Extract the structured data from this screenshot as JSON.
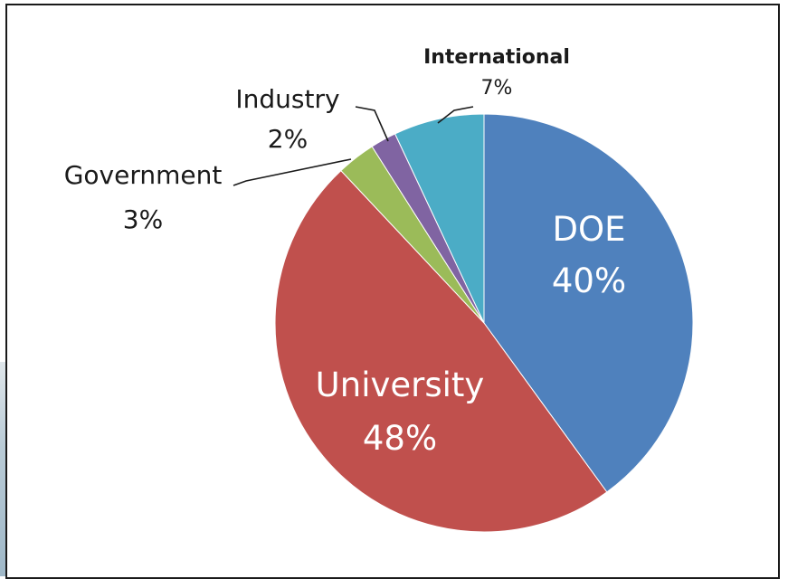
{
  "chart_data": {
    "type": "pie",
    "title": "",
    "slices": [
      {
        "label": "DOE",
        "value": 40,
        "display": "40%",
        "color": "#4f81bd"
      },
      {
        "label": "University",
        "value": 48,
        "display": "48%",
        "color": "#c0504d"
      },
      {
        "label": "Government",
        "value": 3,
        "display": "3%",
        "color": "#9bbb59"
      },
      {
        "label": "Industry",
        "value": 2,
        "display": "2%",
        "color": "#8064a2"
      },
      {
        "label": "International",
        "value": 7,
        "display": "7%",
        "color": "#4bacc6"
      }
    ],
    "start": "12 o'clock",
    "direction": "clockwise",
    "legend": "none"
  }
}
